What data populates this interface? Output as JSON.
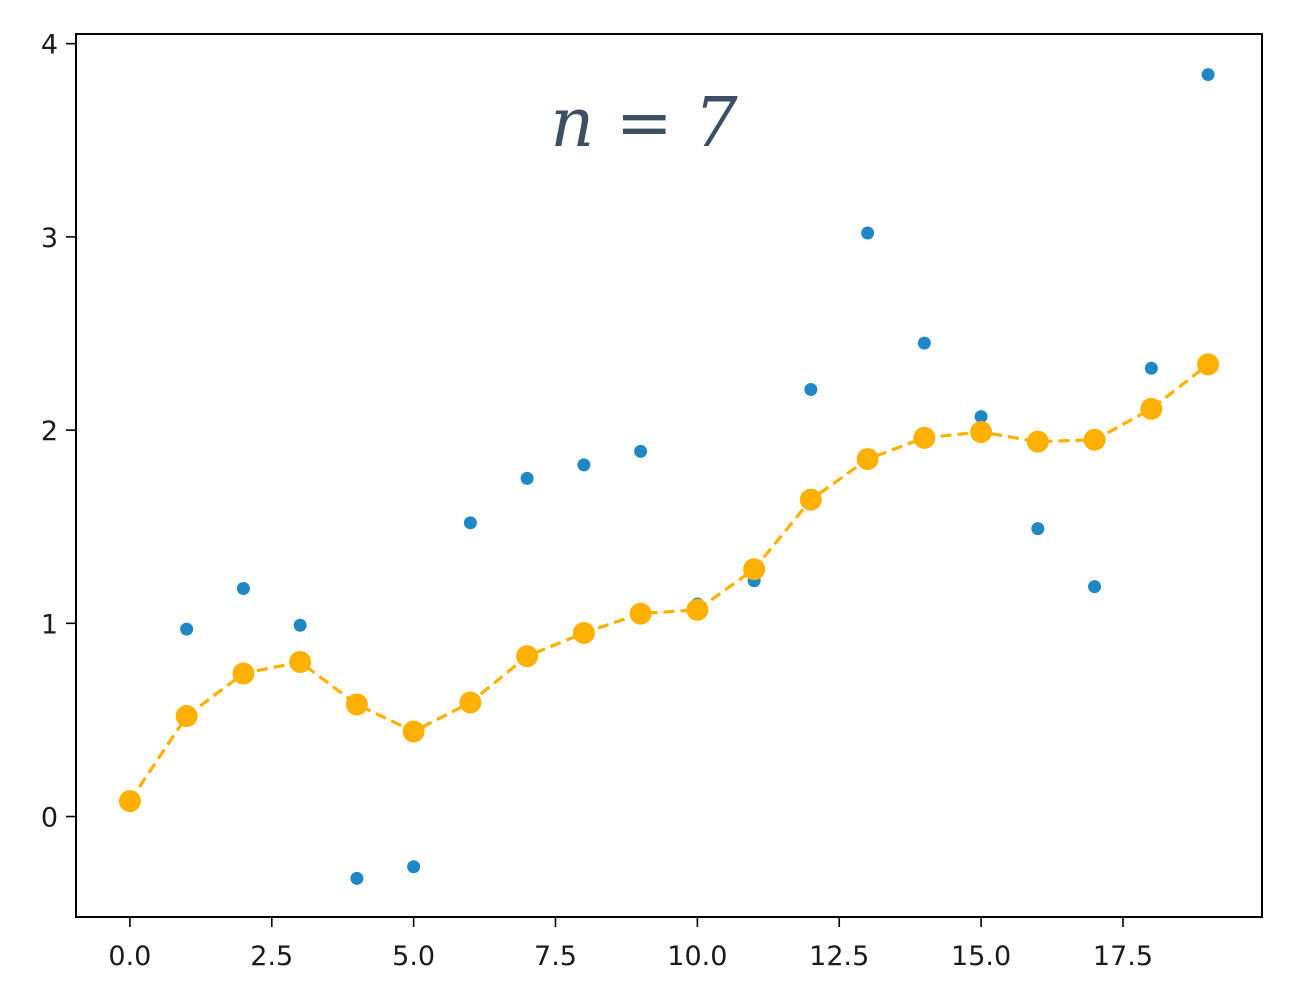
{
  "chart_data": {
    "type": "scatter",
    "title": "",
    "xlabel": "",
    "ylabel": "",
    "annotation": "n = 7",
    "xlim": [
      -0.95,
      19.95
    ],
    "ylim": [
      -0.52,
      4.05
    ],
    "x_ticks": [
      0.0,
      2.5,
      5.0,
      7.5,
      10.0,
      12.5,
      15.0,
      17.5
    ],
    "x_tick_labels": [
      "0.0",
      "2.5",
      "5.0",
      "7.5",
      "10.0",
      "12.5",
      "15.0",
      "17.5"
    ],
    "y_ticks": [
      0,
      1,
      2,
      3,
      4
    ],
    "y_tick_labels": [
      "0",
      "1",
      "2",
      "3",
      "4"
    ],
    "grid": false,
    "series": [
      {
        "kind": "scatter",
        "color": "#1f88c4",
        "x": [
          1,
          2,
          3,
          4,
          5,
          6,
          7,
          8,
          9,
          10,
          11,
          12,
          13,
          14,
          15,
          16,
          17,
          18,
          19
        ],
        "y": [
          0.97,
          1.18,
          0.99,
          -0.32,
          -0.26,
          1.52,
          1.75,
          1.82,
          1.89,
          1.1,
          1.22,
          2.21,
          3.02,
          2.45,
          2.07,
          1.49,
          1.19,
          2.32,
          3.84
        ]
      },
      {
        "kind": "line-markers",
        "color": "#ffb000",
        "line_style": "dashed",
        "x": [
          0,
          1,
          2,
          3,
          4,
          5,
          6,
          7,
          8,
          9,
          10,
          11,
          12,
          13,
          14,
          15,
          16,
          17,
          18,
          19
        ],
        "y": [
          0.08,
          0.52,
          0.74,
          0.8,
          0.58,
          0.44,
          0.59,
          0.83,
          0.95,
          1.05,
          1.07,
          1.28,
          1.64,
          1.85,
          1.96,
          1.99,
          1.94,
          1.95,
          2.11,
          2.34
        ]
      }
    ]
  }
}
